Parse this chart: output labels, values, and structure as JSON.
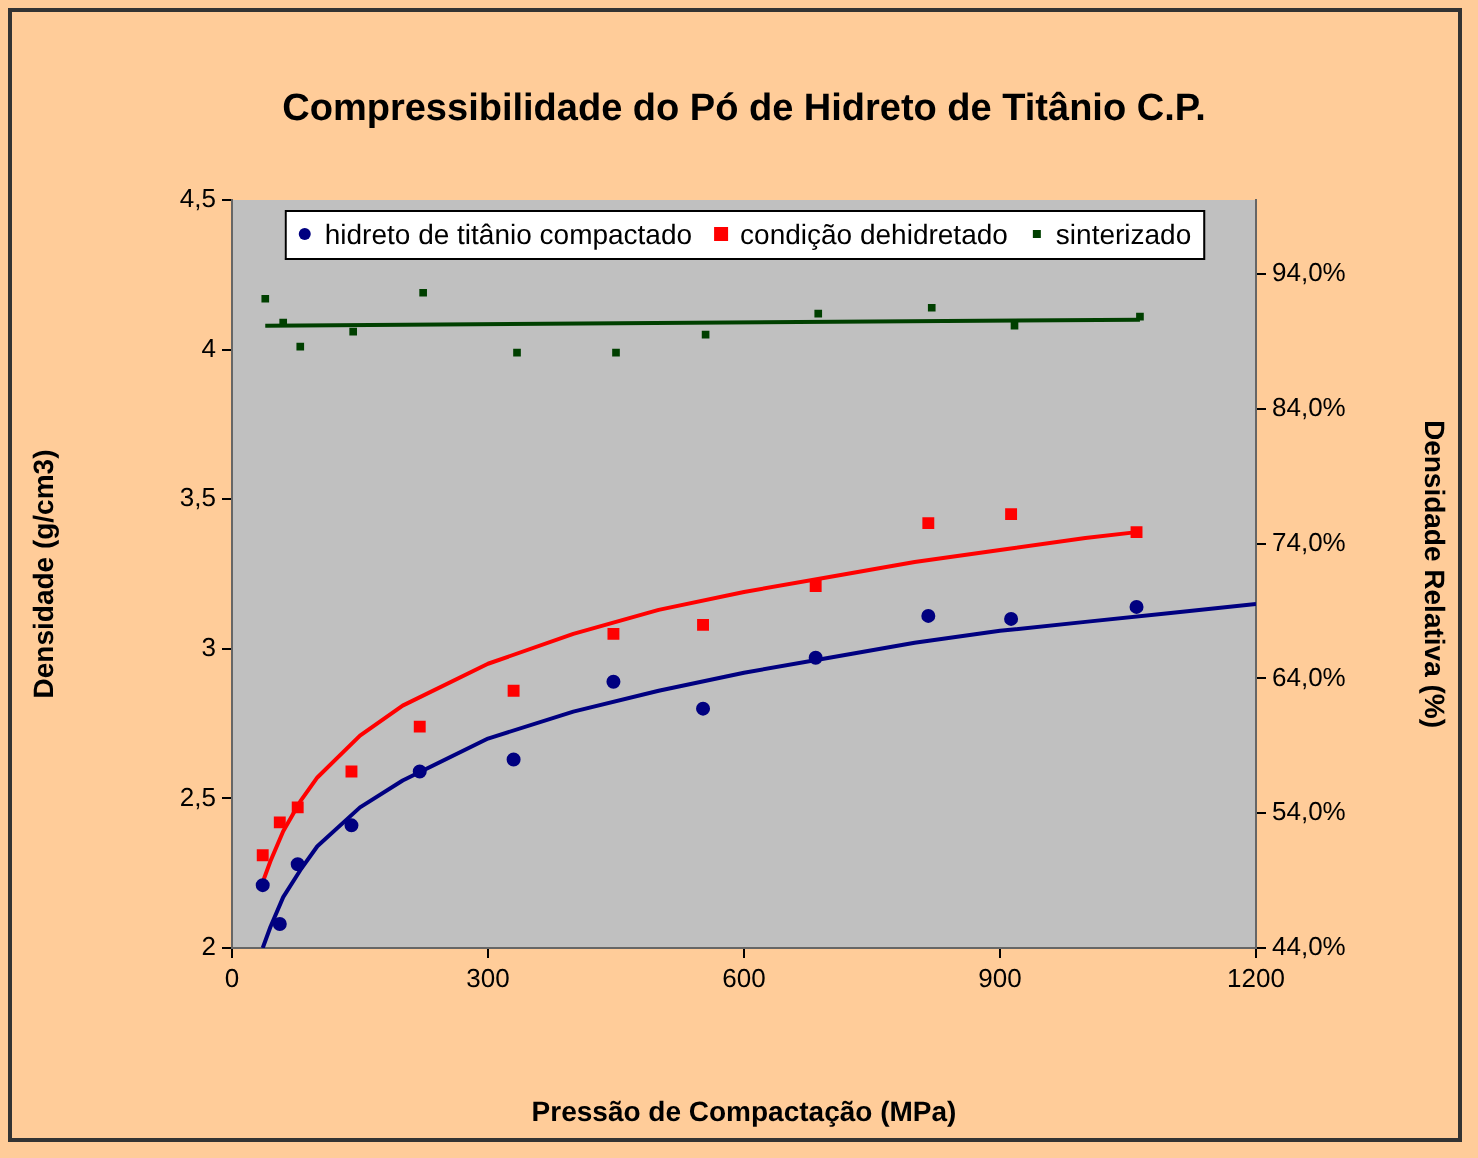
{
  "chart_data": {
    "type": "scatter",
    "title": "Compressibilidade do Pó de Hidreto de Titânio C.P.",
    "xlabel": "Pressão de Compactação (MPa)",
    "ylabel": "Densidade (g/cm3)",
    "y2label": "Densidade Relativa (%)",
    "xlim": [
      0,
      1200
    ],
    "xticks": [
      0,
      300,
      600,
      900,
      1200
    ],
    "ylim": [
      2,
      4.5
    ],
    "yticks": [
      {
        "value": 2,
        "label": "2"
      },
      {
        "value": 2.5,
        "label": "2,5"
      },
      {
        "value": 3,
        "label": "3"
      },
      {
        "value": 3.5,
        "label": "3,5"
      },
      {
        "value": 4,
        "label": "4"
      },
      {
        "value": 4.5,
        "label": "4,5"
      }
    ],
    "y2lim": [
      44,
      99.5
    ],
    "y2ticks": [
      {
        "value": 44,
        "label": "44,0%"
      },
      {
        "value": 54,
        "label": "54,0%"
      },
      {
        "value": 64,
        "label": "64,0%"
      },
      {
        "value": 74,
        "label": "74,0%"
      },
      {
        "value": 84,
        "label": "84,0%"
      },
      {
        "value": 94,
        "label": "94,0%"
      }
    ],
    "grid": false,
    "legend": "top",
    "series": [
      {
        "name": "hidreto de titânio compactado",
        "color": "#000080",
        "marker": "circle",
        "x": [
          36,
          56,
          77,
          140,
          220,
          330,
          447,
          552,
          684,
          816,
          913,
          1060
        ],
        "values": [
          2.21,
          2.08,
          2.28,
          2.41,
          2.59,
          2.63,
          2.89,
          2.8,
          2.97,
          3.11,
          3.1,
          3.14
        ]
      },
      {
        "name": "condição dehidretado",
        "color": "#ff0000",
        "marker": "square",
        "x": [
          36,
          56,
          77,
          140,
          220,
          330,
          447,
          552,
          684,
          816,
          913,
          1060
        ],
        "values": [
          2.31,
          2.42,
          2.47,
          2.59,
          2.74,
          2.86,
          3.05,
          3.08,
          3.21,
          3.42,
          3.45,
          3.39
        ]
      },
      {
        "name": "sinterizado",
        "color": "#004000",
        "marker": "square",
        "x": [
          39,
          60,
          80,
          142,
          224,
          334,
          450,
          555,
          687,
          820,
          917,
          1064
        ],
        "values": [
          4.17,
          4.09,
          4.01,
          4.06,
          4.19,
          3.99,
          3.99,
          4.05,
          4.12,
          4.14,
          4.08,
          4.11
        ]
      },
      {
        "type": "line",
        "color": "#000080",
        "marker": "none",
        "x": [
          36,
          45,
          60,
          80,
          100,
          150,
          200,
          300,
          400,
          500,
          600,
          700,
          800,
          900,
          1000,
          1100,
          1200
        ],
        "values": [
          2.0,
          2.07,
          2.17,
          2.26,
          2.34,
          2.47,
          2.56,
          2.7,
          2.79,
          2.86,
          2.92,
          2.97,
          3.02,
          3.06,
          3.09,
          3.12,
          3.15
        ]
      },
      {
        "type": "line",
        "color": "#ff0000",
        "marker": "none",
        "x": [
          36,
          45,
          60,
          80,
          100,
          150,
          200,
          300,
          400,
          500,
          600,
          700,
          800,
          900,
          1000,
          1060
        ],
        "values": [
          2.22,
          2.29,
          2.39,
          2.49,
          2.57,
          2.71,
          2.81,
          2.95,
          3.05,
          3.13,
          3.19,
          3.24,
          3.29,
          3.33,
          3.37,
          3.39
        ]
      },
      {
        "type": "line",
        "color": "#004000",
        "marker": "none",
        "x": [
          39,
          1064
        ],
        "values": [
          4.08,
          4.1
        ]
      }
    ]
  }
}
